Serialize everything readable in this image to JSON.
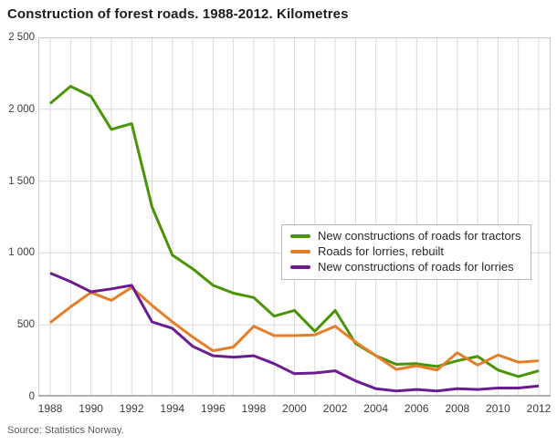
{
  "title": "Construction of forest roads. 1988-2012. Kilometres",
  "source": "Source: Statistics Norway.",
  "axes": {
    "y_ticks": [
      "2 500",
      "2 000",
      "1 500",
      "1 000",
      "500",
      "0"
    ],
    "y_tick_values": [
      2500,
      2000,
      1500,
      1000,
      500,
      0
    ],
    "x_ticks": [
      "1988",
      "1990",
      "1992",
      "1994",
      "1996",
      "1998",
      "2000",
      "2002",
      "2004",
      "2006",
      "2008",
      "2010",
      "2012"
    ]
  },
  "chart_data": {
    "type": "line",
    "title": "Construction of forest roads. 1988-2012. Kilometres",
    "xlabel": "",
    "ylabel": "Kilometres",
    "ylim": [
      0,
      2500
    ],
    "grid": true,
    "legend_position": "center-right",
    "x": [
      1988,
      1989,
      1990,
      1991,
      1992,
      1993,
      1994,
      1995,
      1996,
      1997,
      1998,
      1999,
      2000,
      2001,
      2002,
      2003,
      2004,
      2005,
      2006,
      2007,
      2008,
      2009,
      2010,
      2011,
      2012
    ],
    "series": [
      {
        "name": "New constructions of roads for tractors",
        "color": "#4a9408",
        "values": [
          2040,
          2160,
          2090,
          1860,
          1900,
          1320,
          985,
          890,
          775,
          720,
          690,
          560,
          600,
          455,
          600,
          370,
          285,
          225,
          230,
          210,
          250,
          280,
          185,
          140,
          180
        ]
      },
      {
        "name": "Roads for lorries, rebuilt",
        "color": "#e57e28",
        "values": [
          515,
          625,
          725,
          670,
          760,
          635,
          520,
          415,
          320,
          345,
          490,
          425,
          425,
          430,
          490,
          380,
          285,
          190,
          215,
          185,
          305,
          220,
          290,
          240,
          250
        ]
      },
      {
        "name": "New constructions of roads for lorries",
        "color": "#6a1c90",
        "values": [
          860,
          800,
          730,
          750,
          775,
          520,
          475,
          350,
          285,
          275,
          285,
          230,
          160,
          165,
          180,
          110,
          55,
          40,
          50,
          40,
          55,
          50,
          60,
          60,
          75
        ]
      }
    ]
  }
}
